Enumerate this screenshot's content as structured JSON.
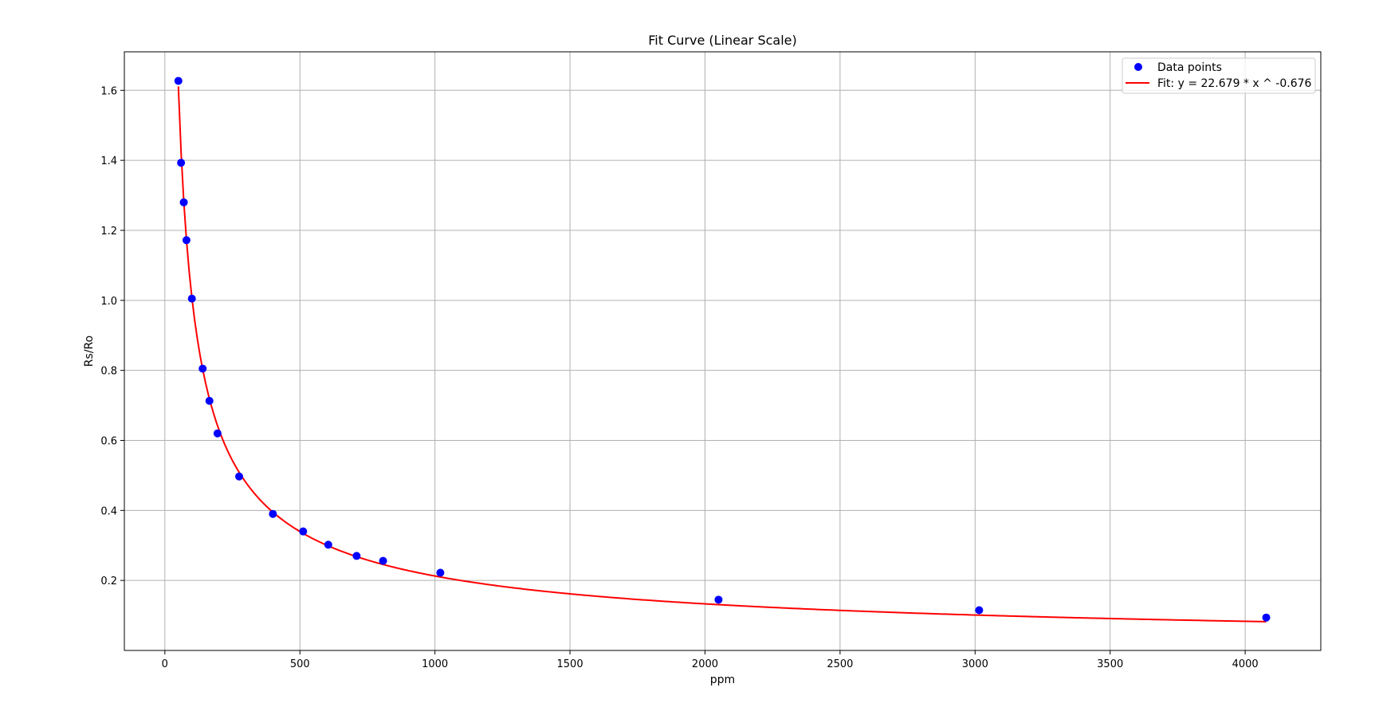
{
  "chart_data": {
    "type": "scatter",
    "title": "Fit Curve (Linear Scale)",
    "xlabel": "ppm",
    "ylabel": "Rs/Ro",
    "xlim": [
      -150,
      4280
    ],
    "ylim": [
      0.0,
      1.71
    ],
    "xticks": [
      0,
      500,
      1000,
      1500,
      2000,
      2500,
      3000,
      3500,
      4000
    ],
    "yticks": [
      0.2,
      0.4,
      0.6,
      0.8,
      1.0,
      1.2,
      1.4,
      1.6
    ],
    "grid": true,
    "legend_position": "top-right",
    "series": [
      {
        "name": "Data points",
        "kind": "scatter",
        "color": "#0000ff",
        "x": [
          50,
          60,
          70,
          80,
          100,
          140,
          165,
          195,
          275,
          400,
          512,
          605,
          710,
          808,
          1020,
          2050,
          3015,
          4078
        ],
        "y": [
          1.627,
          1.393,
          1.28,
          1.172,
          1.005,
          0.805,
          0.713,
          0.62,
          0.497,
          0.39,
          0.34,
          0.302,
          0.27,
          0.256,
          0.222,
          0.145,
          0.115,
          0.094
        ]
      },
      {
        "name": "Fit: y = 22.679 * x ^ -0.676",
        "kind": "line",
        "color": "#ff0000",
        "a": 22.679,
        "b": -0.676,
        "x_range": [
          50,
          4078
        ]
      }
    ]
  }
}
